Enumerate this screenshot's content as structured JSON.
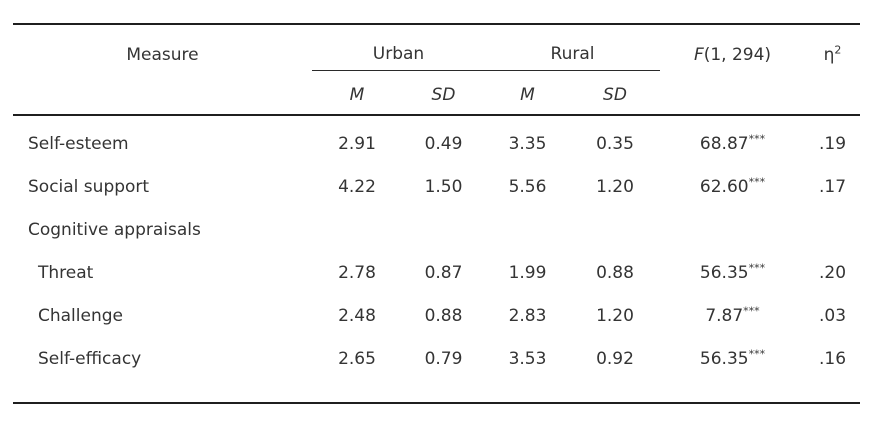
{
  "table": {
    "header": {
      "measure": "Measure",
      "group_urban": "Urban",
      "group_rural": "Rural",
      "f_symbol": "F",
      "f_args": "(1, 294)",
      "eta_symbol": "η",
      "eta_sup": "2",
      "urban_m": "M",
      "urban_sd": "SD",
      "rural_m": "M",
      "rural_sd": "SD"
    },
    "rows": [
      {
        "label": "Self-esteem",
        "urban_m": "2.91",
        "urban_sd": "0.49",
        "rural_m": "3.35",
        "rural_sd": "0.35",
        "f": "68.87",
        "sig": "***",
        "eta2": ".19"
      },
      {
        "label": "Social support",
        "urban_m": "4.22",
        "urban_sd": "1.50",
        "rural_m": "5.56",
        "rural_sd": "1.20",
        "f": "62.60",
        "sig": "***",
        "eta2": ".17"
      },
      {
        "label": "Cognitive appraisals"
      },
      {
        "label": "Threat",
        "urban_m": "2.78",
        "urban_sd": "0.87",
        "rural_m": "1.99",
        "rural_sd": "0.88",
        "f": "56.35",
        "sig": "***",
        "eta2": ".20"
      },
      {
        "label": "Challenge",
        "urban_m": "2.48",
        "urban_sd": "0.88",
        "rural_m": "2.83",
        "rural_sd": "1.20",
        "f": "7.87",
        "sig": "***",
        "eta2": ".03"
      },
      {
        "label": "Self-efficacy",
        "urban_m": "2.65",
        "urban_sd": "0.79",
        "rural_m": "3.53",
        "rural_sd": "0.92",
        "f": "56.35",
        "sig": "***",
        "eta2": ".16"
      }
    ],
    "colors": {
      "text": "#343434",
      "rule": "#1f1f1f",
      "background": "#ffffff"
    }
  }
}
